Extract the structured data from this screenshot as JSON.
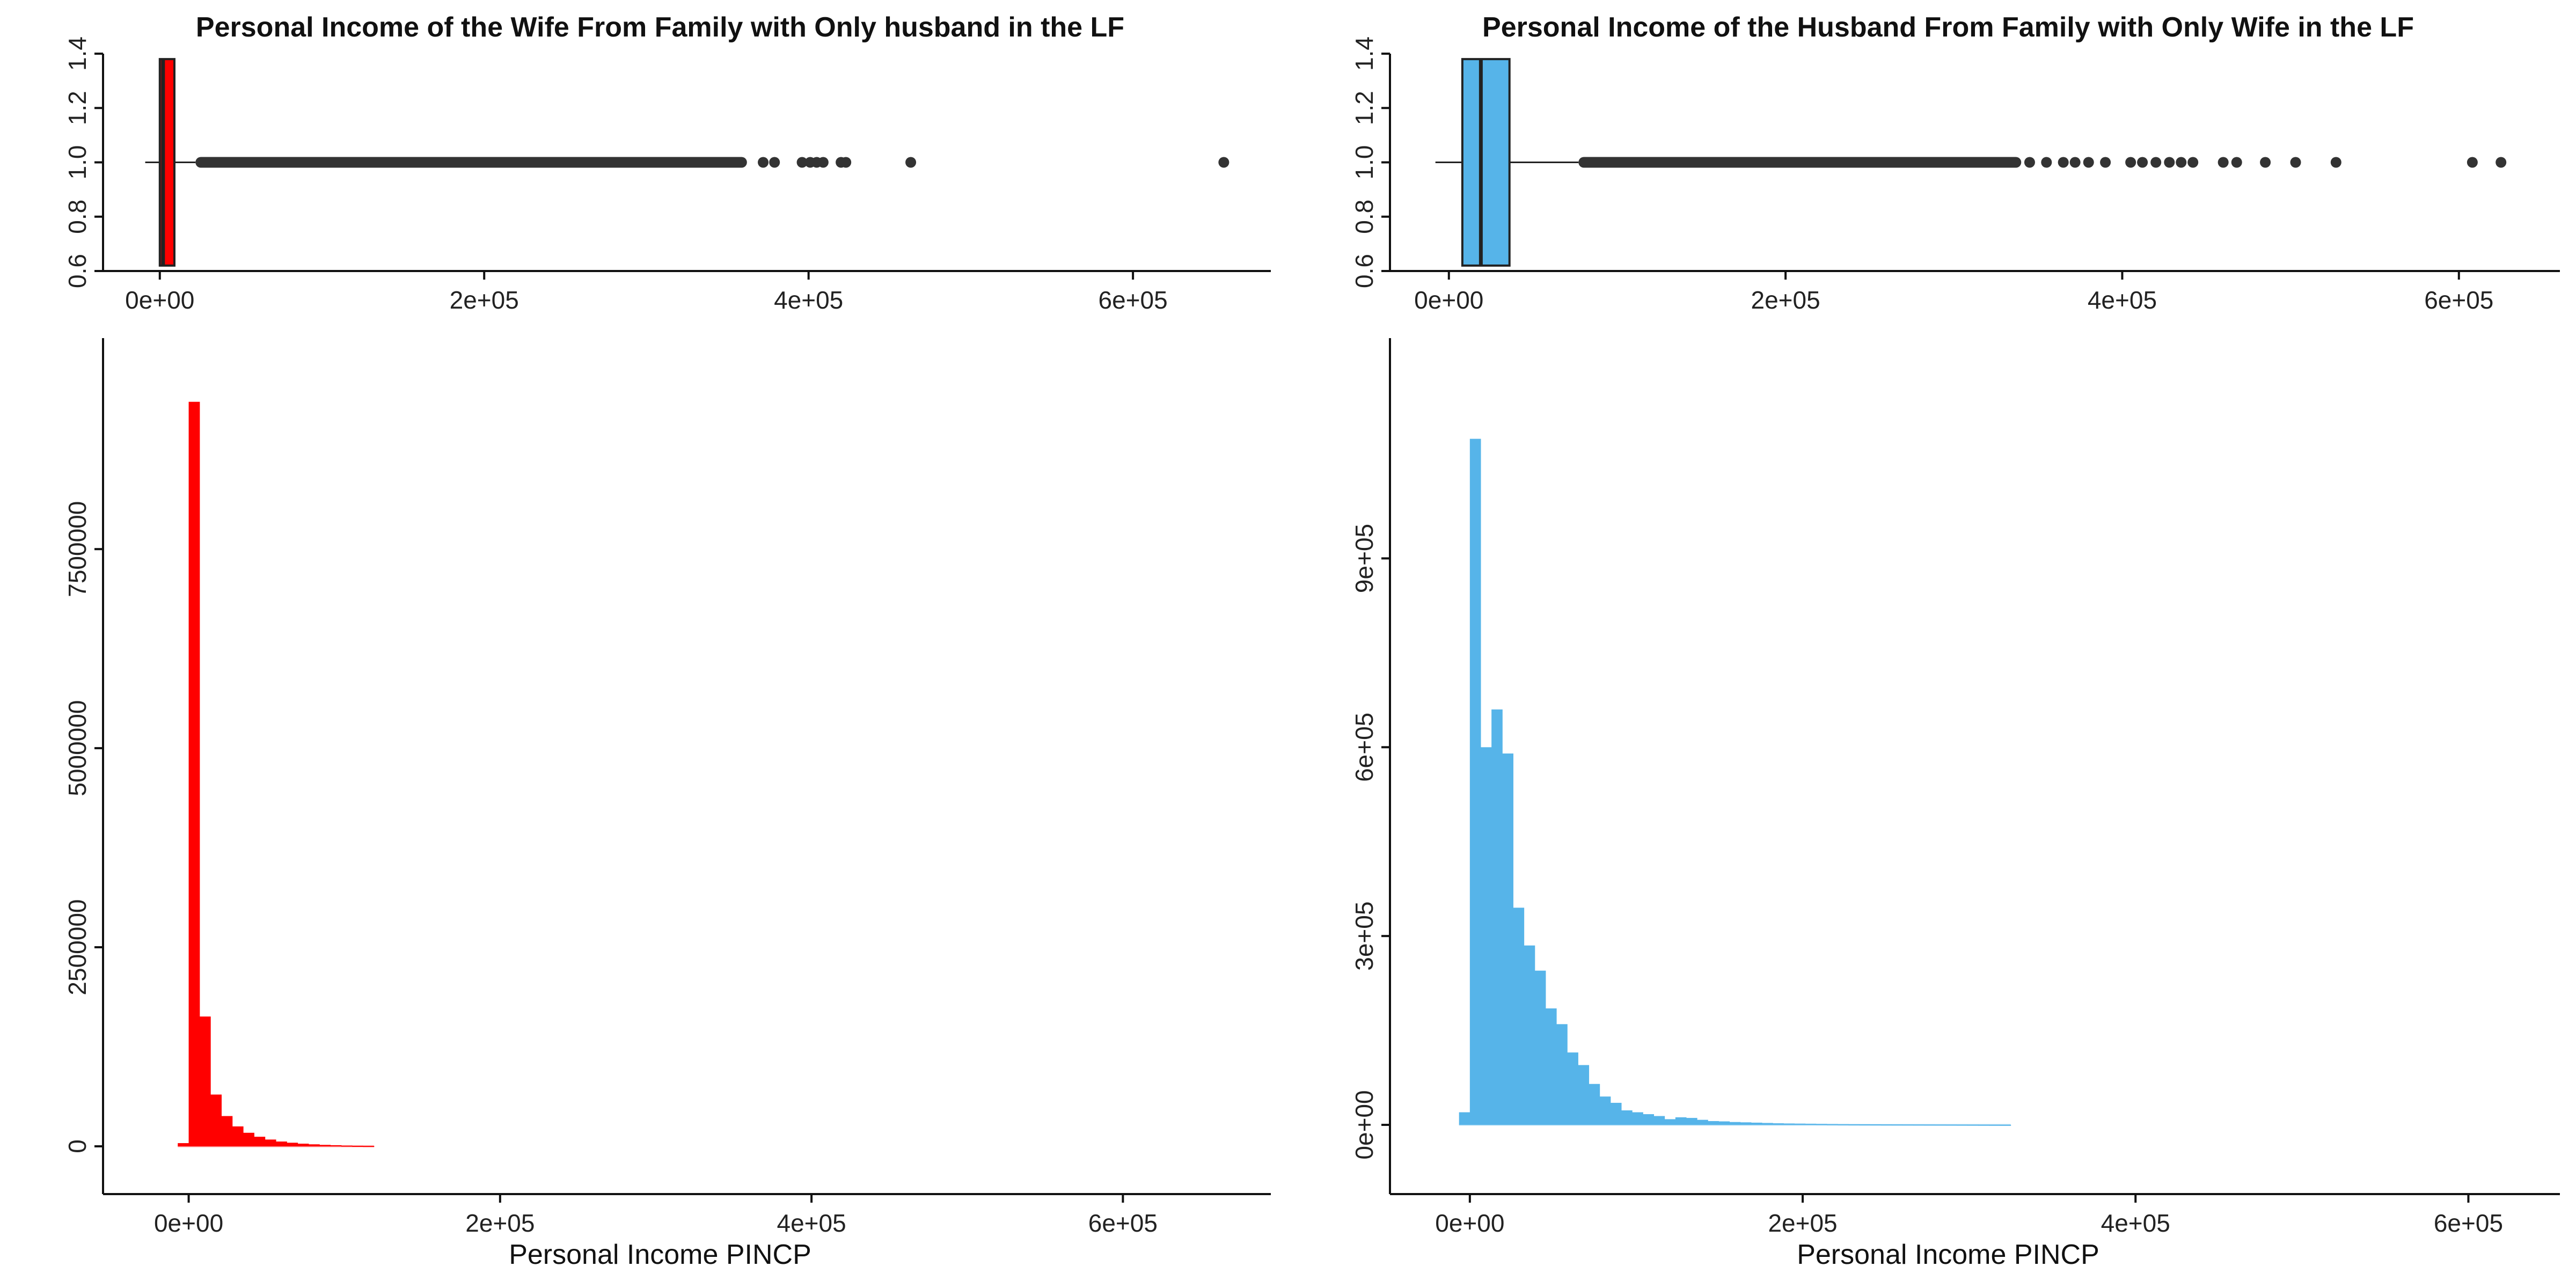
{
  "chart_data": [
    {
      "type": "boxplot",
      "title": "Personal Income of the Wife From Family with Only husband in the LF",
      "xlabel": "",
      "ylabel": "",
      "xlim": [
        -35000,
        685000
      ],
      "ylim": [
        0.6,
        1.4
      ],
      "x_ticks": [
        0,
        200000,
        400000,
        600000
      ],
      "x_tick_labels": [
        "0e+00",
        "2e+05",
        "4e+05",
        "6e+05"
      ],
      "y_ticks": [
        0.6,
        0.8,
        1.0,
        1.2,
        1.4
      ],
      "y_tick_labels": [
        "0.6",
        "0.8",
        "1.0",
        "1.2",
        "1.4"
      ],
      "color": "#ff0000",
      "box": {
        "whisker_low": -9000,
        "q1": 0,
        "median": 2000,
        "q3": 9000,
        "whisker_high": 22000
      },
      "outlier_dense_range": [
        22000,
        362000
      ],
      "outliers": [
        372000,
        379000,
        396000,
        401000,
        405000,
        409000,
        420000,
        423000,
        463000,
        656000
      ]
    },
    {
      "type": "boxplot",
      "title": "Personal Income of the Husband From Family with Only Wife in the LF",
      "xlabel": "",
      "ylabel": "",
      "xlim": [
        -35000,
        660000
      ],
      "ylim": [
        0.6,
        1.4
      ],
      "x_ticks": [
        0,
        200000,
        400000,
        600000
      ],
      "x_tick_labels": [
        "0e+00",
        "2e+05",
        "4e+05",
        "6e+05"
      ],
      "y_ticks": [
        0.6,
        0.8,
        1.0,
        1.2,
        1.4
      ],
      "y_tick_labels": [
        "0.6",
        "0.8",
        "1.0",
        "1.2",
        "1.4"
      ],
      "color": "#56b4e9",
      "box": {
        "whisker_low": -8000,
        "q1": 8000,
        "median": 19000,
        "q3": 36000,
        "whisker_high": 77000
      },
      "outlier_dense_range": [
        77000,
        340000
      ],
      "outliers": [
        345000,
        355000,
        365000,
        372000,
        380000,
        390000,
        405000,
        412000,
        420000,
        428000,
        435000,
        442000,
        460000,
        468000,
        485000,
        503000,
        527000,
        608000,
        625000
      ]
    },
    {
      "type": "bar",
      "title": "",
      "xlabel": "Personal Income PINCP",
      "ylabel": "",
      "xlim": [
        -55000,
        695000
      ],
      "ylim": [
        -600000,
        10150000
      ],
      "x_ticks": [
        0,
        200000,
        400000,
        600000
      ],
      "x_tick_labels": [
        "0e+00",
        "2e+05",
        "4e+05",
        "6e+05"
      ],
      "y_ticks": [
        0,
        2500000,
        5000000,
        7500000
      ],
      "y_tick_labels": [
        "0",
        "2500000",
        "5000000",
        "7500000"
      ],
      "color": "#ff0000",
      "bin_width": 7000,
      "x_start": -7000,
      "values": [
        40000,
        9350000,
        1630000,
        650000,
        380000,
        250000,
        170000,
        120000,
        85000,
        60000,
        45000,
        33000,
        25000,
        18000,
        14000,
        10000,
        7000,
        5000
      ]
    },
    {
      "type": "bar",
      "title": "",
      "xlabel": "Personal Income PINCP",
      "ylabel": "",
      "xlim": [
        -48000,
        655000
      ],
      "ylim": [
        -110000,
        1250000
      ],
      "x_ticks": [
        0,
        200000,
        400000,
        600000
      ],
      "x_tick_labels": [
        "0e+00",
        "2e+05",
        "4e+05",
        "6e+05"
      ],
      "y_ticks": [
        0,
        300000,
        600000,
        900000
      ],
      "y_tick_labels": [
        "0e+00",
        "3e+05",
        "6e+05",
        "9e+05"
      ],
      "color": "#56b4e9",
      "bin_width": 6500,
      "x_start": -6500,
      "values": [
        20000,
        1090000,
        600000,
        660000,
        590000,
        345000,
        285000,
        245000,
        185000,
        160000,
        115000,
        95000,
        65000,
        45000,
        35000,
        23000,
        20000,
        17000,
        14000,
        9000,
        12000,
        11000,
        8000,
        6000,
        5500,
        4500,
        4000,
        3500,
        3000,
        2500,
        2200,
        2000,
        1800,
        1600,
        1400,
        1200,
        1000,
        900,
        800,
        700,
        650,
        600,
        550,
        500,
        450,
        400,
        350,
        300,
        250,
        200,
        150
      ]
    }
  ]
}
